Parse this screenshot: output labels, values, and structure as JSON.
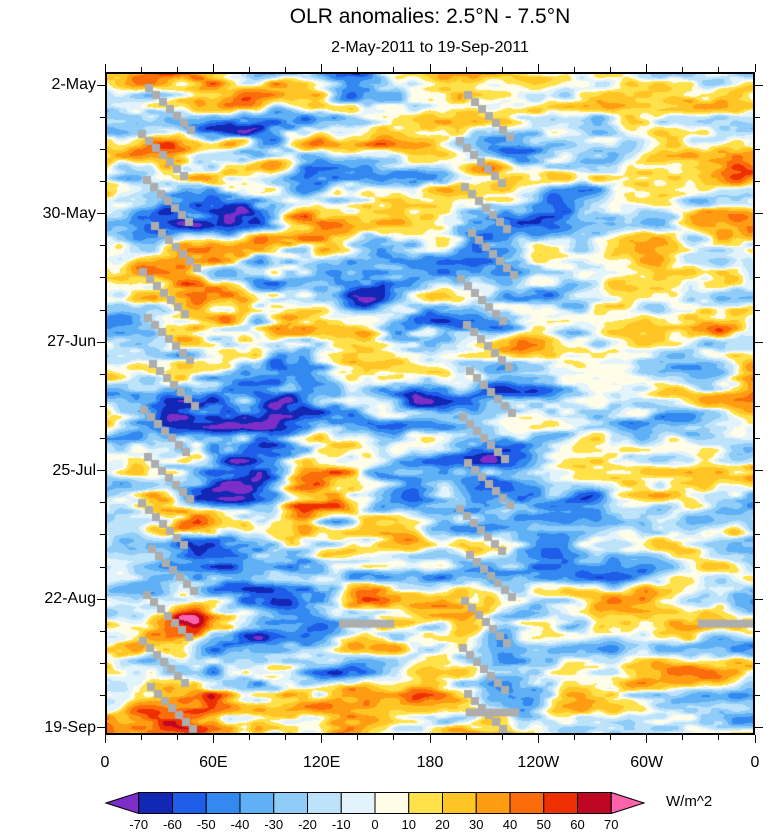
{
  "chart_data": {
    "type": "heatmap",
    "title": "OLR anomalies: 2.5°N - 7.5°N",
    "subtitle": "2-May-2011 to 19-Sep-2011",
    "x_axis": {
      "label_ticks": [
        "0",
        "60E",
        "120E",
        "180",
        "120W",
        "60W",
        "0"
      ],
      "minor_per_interval": 2
    },
    "y_axis": {
      "label_ticks": [
        "2-May",
        "30-May",
        "27-Jun",
        "25-Jul",
        "22-Aug",
        "19-Sep"
      ],
      "minor_per_interval": 3,
      "first_tick_frac": 0.02,
      "last_tick_frac": 0.989
    },
    "colorbar": {
      "levels": [
        -70,
        -60,
        -50,
        -40,
        -30,
        -20,
        -10,
        0,
        10,
        20,
        30,
        40,
        50,
        60,
        70
      ],
      "colors": [
        "#7D2EC8",
        "#1227B4",
        "#1D5DE8",
        "#3389F0",
        "#5FB0F4",
        "#8FCCF8",
        "#BCE3FA",
        "#E2F3FC",
        "#FFFDE8",
        "#FFE14A",
        "#FFC524",
        "#FF9C12",
        "#FB6C0A",
        "#EE3000",
        "#BE0823",
        "#FF63AC"
      ],
      "units": "W/m^2"
    },
    "axis_color": "#000000",
    "missing_color": "#ADADAD",
    "field": {
      "amplitude": 72,
      "gamma": 0.78,
      "octaves": [
        {
          "sx": 0.0118,
          "sy": 0.04,
          "w": 1.0,
          "skew": 0.3,
          "seed": 101
        },
        {
          "sx": 0.028,
          "sy": 0.085,
          "w": 0.6,
          "skew": 0.12,
          "seed": 202
        },
        {
          "sx": 0.065,
          "sy": 0.18,
          "w": 0.3,
          "skew": 0.0,
          "seed": 303
        }
      ],
      "low_freq": {
        "sx": 0.0026,
        "sy": 0.0058,
        "amp": 15,
        "seed": 404
      },
      "amp_profile": [
        0.9,
        1.2,
        1.35,
        1.2,
        1.0,
        1.05,
        1.0,
        0.92,
        0.9,
        1.05
      ]
    },
    "missing": {
      "block": 7,
      "blocks_per_streak": 7,
      "streaks": [
        {
          "x": 0.062,
          "y": 0.018
        },
        {
          "x": 0.05,
          "y": 0.0875
        },
        {
          "x": 0.058,
          "y": 0.157
        },
        {
          "x": 0.07,
          "y": 0.2265
        },
        {
          "x": 0.052,
          "y": 0.296
        },
        {
          "x": 0.06,
          "y": 0.3655
        },
        {
          "x": 0.068,
          "y": 0.435
        },
        {
          "x": 0.054,
          "y": 0.5045
        },
        {
          "x": 0.06,
          "y": 0.574
        },
        {
          "x": 0.05,
          "y": 0.6435
        },
        {
          "x": 0.066,
          "y": 0.713
        },
        {
          "x": 0.058,
          "y": 0.7825
        },
        {
          "x": 0.052,
          "y": 0.852
        },
        {
          "x": 0.064,
          "y": 0.9215
        },
        {
          "x": 0.552,
          "y": 0.028
        },
        {
          "x": 0.54,
          "y": 0.0975
        },
        {
          "x": 0.548,
          "y": 0.167
        },
        {
          "x": 0.558,
          "y": 0.2365
        },
        {
          "x": 0.542,
          "y": 0.306
        },
        {
          "x": 0.55,
          "y": 0.3755
        },
        {
          "x": 0.556,
          "y": 0.445
        },
        {
          "x": 0.544,
          "y": 0.5145
        },
        {
          "x": 0.552,
          "y": 0.584
        },
        {
          "x": 0.54,
          "y": 0.6535
        },
        {
          "x": 0.556,
          "y": 0.723
        },
        {
          "x": 0.548,
          "y": 0.7925
        },
        {
          "x": 0.544,
          "y": 0.862
        },
        {
          "x": 0.552,
          "y": 0.9315
        }
      ],
      "bars": [
        {
          "x": 0.36,
          "y": 0.826,
          "w": 0.085,
          "h": 0.012
        },
        {
          "x": 0.912,
          "y": 0.826,
          "w": 0.088,
          "h": 0.012
        },
        {
          "x": 0.555,
          "y": 0.96,
          "w": 0.082,
          "h": 0.012
        }
      ]
    }
  }
}
